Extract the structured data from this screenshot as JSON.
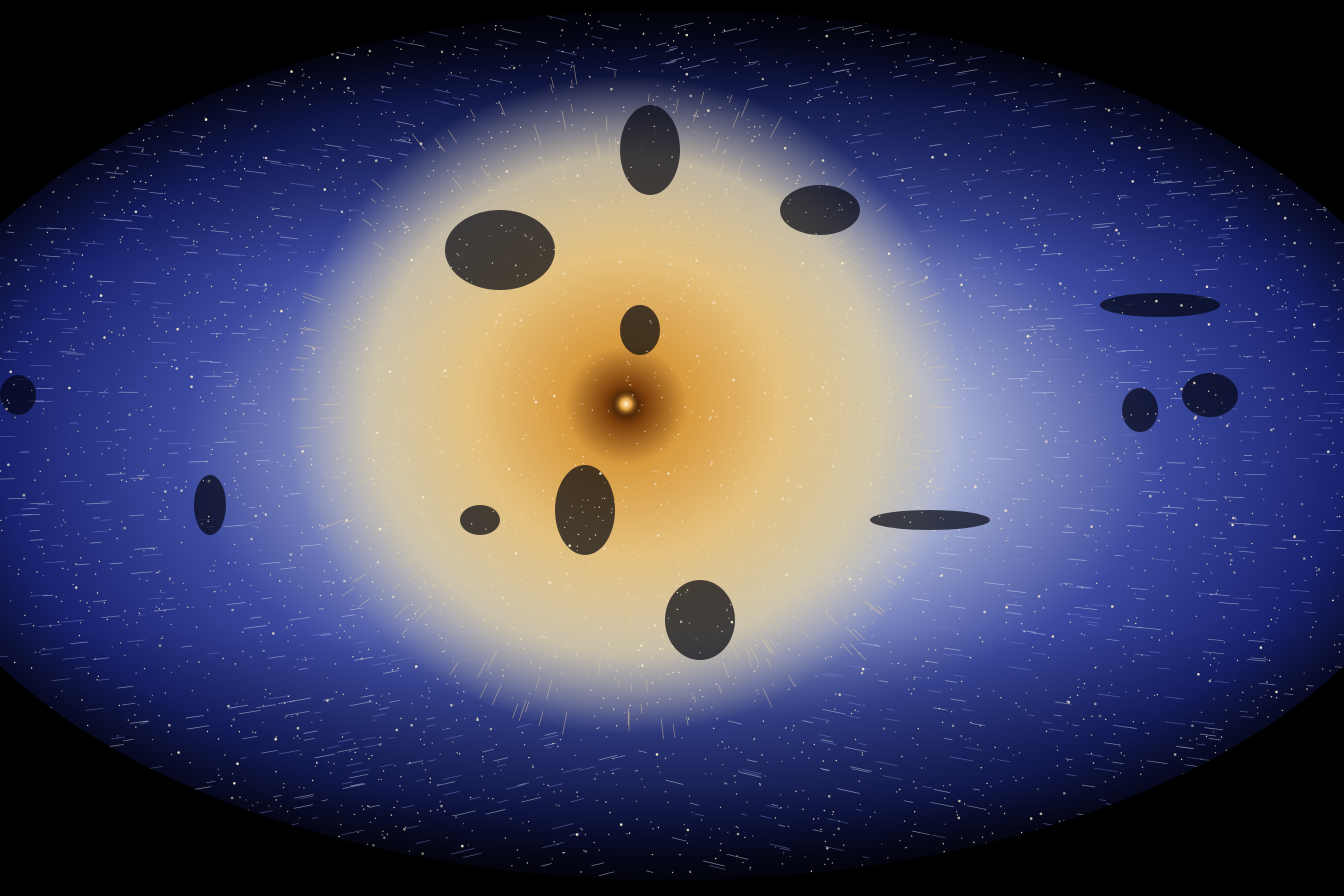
{
  "image": {
    "subject": "all-sky-star-motion-map",
    "colors": {
      "background": "#000000",
      "outer_band": "#1c2a8a",
      "mid_band": "#aeb7d9",
      "core_glow": "#e8b45e",
      "core_center": "#8a4a10",
      "star": "#f3e7c9"
    }
  }
}
